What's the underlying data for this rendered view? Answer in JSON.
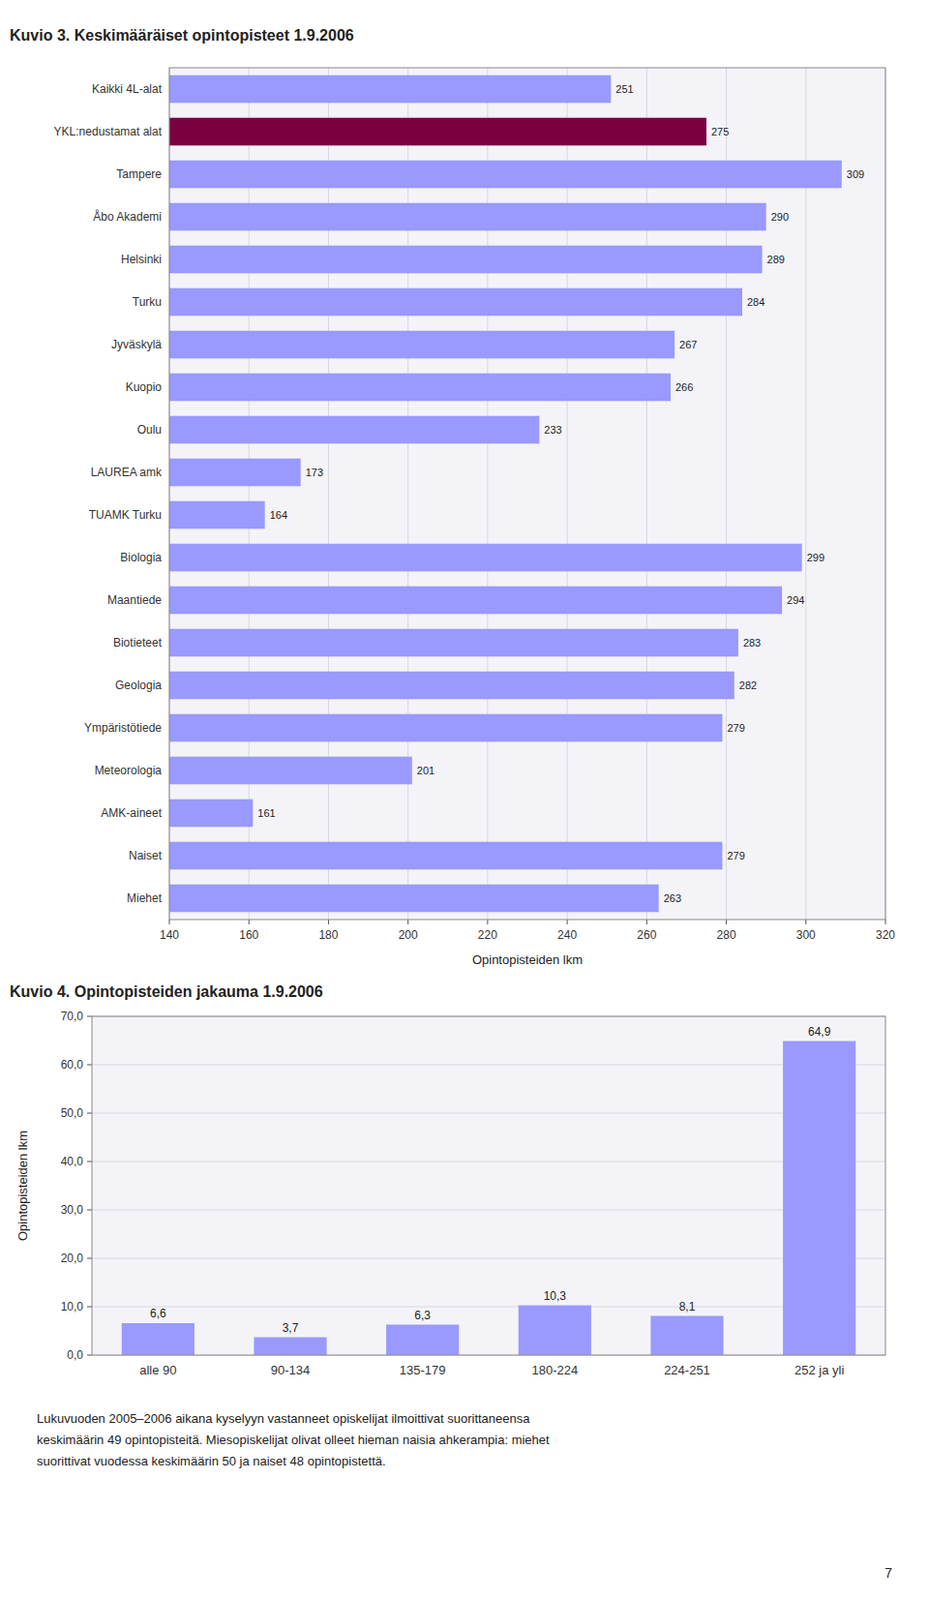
{
  "chart_data": [
    {
      "type": "bar",
      "orientation": "horizontal",
      "title": "Kuvio 3. Keskimääräiset opintopisteet 1.9.2006",
      "xlabel": "Opintopisteiden lkm",
      "categories": [
        "Kaikki 4L-alat",
        "YKL:nedustamat alat",
        "Tampere",
        "Åbo Akademi",
        "Helsinki",
        "Turku",
        "Jyväskylä",
        "Kuopio",
        "Oulu",
        "LAUREA amk",
        "TUAMK Turku",
        "Biologia",
        "Maantiede",
        "Biotieteet",
        "Geologia",
        "Ympäristötiede",
        "Meteorologia",
        "AMK-aineet",
        "Naiset",
        "Miehet"
      ],
      "values": [
        251,
        275,
        309,
        290,
        289,
        284,
        267,
        266,
        233,
        173,
        164,
        299,
        294,
        283,
        282,
        279,
        201,
        161,
        279,
        263
      ],
      "colors": [
        "#9999ff",
        "#7b0040",
        "#9999ff",
        "#9999ff",
        "#9999ff",
        "#9999ff",
        "#9999ff",
        "#9999ff",
        "#9999ff",
        "#9999ff",
        "#9999ff",
        "#9999ff",
        "#9999ff",
        "#9999ff",
        "#9999ff",
        "#9999ff",
        "#9999ff",
        "#9999ff",
        "#9999ff",
        "#9999ff"
      ],
      "xlim": [
        140,
        320
      ],
      "xticks": [
        140,
        160,
        180,
        200,
        220,
        240,
        260,
        280,
        300,
        320
      ],
      "grid": true,
      "data_labels": true
    },
    {
      "type": "bar",
      "title": "Kuvio 4. Opintopisteiden jakauma 1.9.2006",
      "ylabel": "Opintopisteiden lkm",
      "categories": [
        "alle 90",
        "90-134",
        "135-179",
        "180-224",
        "224-251",
        "252 ja yli"
      ],
      "values": [
        6.6,
        3.7,
        6.3,
        10.3,
        8.1,
        64.9
      ],
      "value_labels": [
        "6,6",
        "3,7",
        "6,3",
        "10,3",
        "8,1",
        "64,9"
      ],
      "color": "#9999ff",
      "ylim": [
        0,
        70
      ],
      "yticks": [
        {
          "value": 0.0,
          "label": "0,0"
        },
        {
          "value": 10.0,
          "label": "10,0"
        },
        {
          "value": 20.0,
          "label": "20,0"
        },
        {
          "value": 30.0,
          "label": "30,0"
        },
        {
          "value": 40.0,
          "label": "40,0"
        },
        {
          "value": 50.0,
          "label": "50,0"
        },
        {
          "value": 60.0,
          "label": "60,0"
        },
        {
          "value": 70.0,
          "label": "70,0"
        }
      ],
      "grid": true,
      "data_labels": true
    }
  ],
  "footnote": "Lukuvuoden 2005–2006 aikana kyselyyn vastanneet opiskelijat ilmoittivat suorittaneensa\nkeskimäärin 49 opintopisteitä. Miesopiskelijat olivat olleet hieman naisia ahkerampia: miehet\nsuorittivat vuodessa keskimäärin 50 ja naiset 48 opintopistettä.",
  "page_number": "7"
}
